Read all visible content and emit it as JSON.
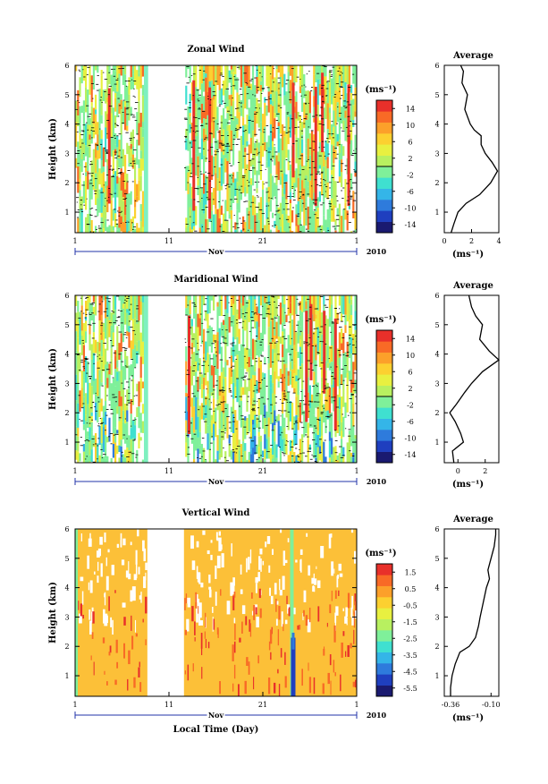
{
  "chart_data": [
    {
      "type": "heatmap",
      "title": "Zonal Wind",
      "ylabel": "Height (km)",
      "xlabel": "",
      "x_ticks": [
        "1",
        "11",
        "21",
        "1"
      ],
      "x_month": "Nov",
      "x_year": "2010",
      "ylim": [
        0.3,
        6
      ],
      "y_ticks": [
        1,
        2,
        3,
        4,
        5,
        6
      ],
      "colorbar": {
        "unit": "(ms⁻¹)",
        "ticks": [
          "14",
          "10",
          "6",
          "2",
          "-2",
          "-6",
          "-10",
          "-14"
        ],
        "range": [
          -16,
          16
        ]
      },
      "data_gap_days": [
        8.7,
        12.6
      ],
      "average_profile": {
        "title": "Average",
        "xlabel": "(ms⁻¹)",
        "xlim": [
          0,
          4
        ],
        "x_ticks": [
          "0",
          "2",
          "4"
        ],
        "height": [
          0.3,
          0.6,
          1.0,
          1.3,
          1.6,
          2.0,
          2.4,
          2.7,
          3.0,
          3.3,
          3.6,
          3.8,
          4.0,
          4.5,
          5.0,
          5.4,
          5.8,
          6.0
        ],
        "value": [
          0.5,
          0.7,
          1.0,
          1.6,
          2.6,
          3.4,
          3.9,
          3.5,
          3.0,
          2.7,
          2.7,
          2.2,
          1.9,
          1.5,
          1.7,
          1.3,
          1.4,
          1.2
        ]
      }
    },
    {
      "type": "heatmap",
      "title": "Maridional Wind",
      "ylabel": "Height (km)",
      "xlabel": "",
      "x_ticks": [
        "1",
        "11",
        "21",
        "1"
      ],
      "x_month": "Nov",
      "x_year": "2010",
      "ylim": [
        0.3,
        6
      ],
      "y_ticks": [
        1,
        2,
        3,
        4,
        5,
        6
      ],
      "colorbar": {
        "unit": "(ms⁻¹)",
        "ticks": [
          "14",
          "10",
          "6",
          "2",
          "-2",
          "-6",
          "-10",
          "-14"
        ],
        "range": [
          -16,
          16
        ]
      },
      "data_gap_days": [
        8.7,
        12.6
      ],
      "average_profile": {
        "title": "Average",
        "xlabel": "(ms⁻¹)",
        "xlim": [
          -1,
          3
        ],
        "x_ticks": [
          "0",
          "2"
        ],
        "height": [
          0.3,
          0.7,
          1.0,
          1.3,
          1.7,
          2.0,
          2.3,
          2.7,
          3.0,
          3.4,
          3.8,
          4.1,
          4.5,
          5.0,
          5.3,
          5.6,
          6.0
        ],
        "value": [
          -0.3,
          -0.4,
          0.4,
          0.2,
          -0.2,
          -0.6,
          -0.1,
          0.5,
          1.0,
          1.8,
          3.0,
          2.3,
          1.6,
          1.8,
          1.3,
          1.0,
          0.8
        ]
      }
    },
    {
      "type": "heatmap",
      "title": "Vertical Wind",
      "ylabel": "Height (km)",
      "xlabel": "Local Time (Day)",
      "x_ticks": [
        "1",
        "11",
        "21",
        "1"
      ],
      "x_month": "Nov",
      "x_year": "2010",
      "ylim": [
        0.3,
        6
      ],
      "y_ticks": [
        1,
        2,
        3,
        4,
        5,
        6
      ],
      "colorbar": {
        "unit": "(ms⁻¹)",
        "ticks": [
          "1.5",
          "0.5",
          "-0.5",
          "-1.5",
          "-2.5",
          "-3.5",
          "-4.5",
          "-5.5"
        ],
        "range": [
          -6,
          2
        ]
      },
      "data_gap_days": [
        8.7,
        12.6
      ],
      "average_profile": {
        "title": "Average",
        "xlabel": "(ms⁻¹)",
        "xlim": [
          -0.4,
          -0.05
        ],
        "x_ticks": [
          "-0.36",
          "-0.10"
        ],
        "height": [
          0.3,
          0.6,
          1.0,
          1.4,
          1.8,
          2.0,
          2.3,
          2.7,
          3.0,
          3.5,
          4.0,
          4.3,
          4.6,
          5.0,
          5.4,
          5.8,
          6.0
        ],
        "value": [
          -0.36,
          -0.36,
          -0.35,
          -0.33,
          -0.3,
          -0.24,
          -0.2,
          -0.18,
          -0.17,
          -0.15,
          -0.13,
          -0.11,
          -0.12,
          -0.1,
          -0.08,
          -0.07,
          -0.07
        ]
      }
    }
  ],
  "colors": {
    "jet": [
      "#1a1a70",
      "#1f3fbf",
      "#2e7bdc",
      "#34b5e8",
      "#3fe0d0",
      "#7ff09a",
      "#b8f060",
      "#e8f040",
      "#fcd030",
      "#fca02a",
      "#f86a26",
      "#e8302a"
    ],
    "contour": "#000000"
  }
}
